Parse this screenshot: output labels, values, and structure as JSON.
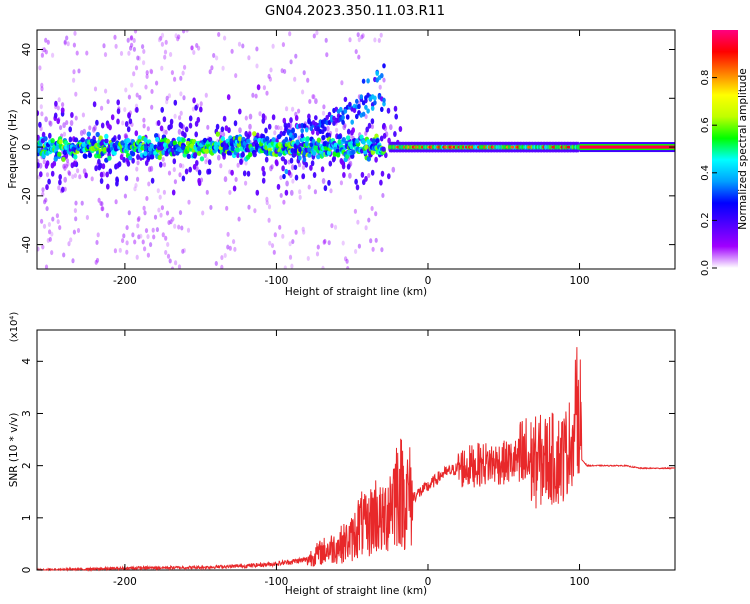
{
  "figure": {
    "title": "GN04.2023.350.11.03.R11"
  },
  "chart_data": [
    {
      "type": "heatmap",
      "xlabel": "Height of straight line (km)",
      "ylabel": "Frequency (Hz)",
      "xlim": [
        -258,
        163
      ],
      "ylim": [
        -50,
        48
      ],
      "xticks": [
        -200,
        -100,
        0,
        100
      ],
      "yticks": [
        -40,
        -20,
        0,
        20,
        40
      ],
      "colorbar": {
        "label": "Normalized spectral amplitude",
        "range": [
          0,
          1
        ],
        "ticks": [
          0.0,
          0.2,
          0.4,
          0.6,
          0.8
        ],
        "colormap": [
          "#ffffff",
          "#a000ff",
          "#5000ff",
          "#0000ff",
          "#00a0ff",
          "#00ffff",
          "#00ff00",
          "#c0ff00",
          "#ffff00",
          "#ff8000",
          "#ff0000",
          "#ff0080"
        ]
      },
      "features": [
        {
          "name": "noise band",
          "x_range": [
            -258,
            -30
          ],
          "center_freq": 0,
          "amplitude": 0.45
        },
        {
          "name": "rising trace",
          "x_range": [
            -90,
            -30
          ],
          "center_freq": [
            5,
            30
          ],
          "amplitude": 0.3
        },
        {
          "name": "coherent signal",
          "x_range": [
            -10,
            100
          ],
          "center_freq": 0,
          "amplitude": 0.65
        },
        {
          "name": "strong tone",
          "x_range": [
            100,
            163
          ],
          "center_freq": 0,
          "amplitude": 0.95
        }
      ]
    },
    {
      "type": "line",
      "xlabel": "Height of straight line (km)",
      "ylabel": "SNR (10 * v/v)",
      "yscale_note": "(x10⁴)",
      "xlim": [
        -258,
        163
      ],
      "ylim": [
        0,
        4.6
      ],
      "xticks": [
        -200,
        -100,
        0,
        100
      ],
      "yticks": [
        0,
        1,
        2,
        3,
        4
      ],
      "color": "#e8282a",
      "series": [
        {
          "x": [
            -258,
            -220,
            -190,
            -150,
            -120,
            -100,
            -80,
            -70,
            -60,
            -50,
            -45,
            -40,
            -35,
            -30,
            -25,
            -20,
            -15,
            -10,
            0,
            10,
            20,
            30,
            40,
            50,
            60,
            65,
            70,
            75,
            80,
            85,
            90,
            95,
            100,
            102,
            105,
            110,
            130,
            140,
            150,
            163
          ],
          "y": [
            0.0,
            0.02,
            0.04,
            0.05,
            0.08,
            0.12,
            0.2,
            0.35,
            0.45,
            0.6,
            0.9,
            0.8,
            1.1,
            0.9,
            1.3,
            1.6,
            1.4,
            1.4,
            1.6,
            1.85,
            1.95,
            2.0,
            2.05,
            2.05,
            2.1,
            2.1,
            2.05,
            2.1,
            2.15,
            2.1,
            2.2,
            2.5,
            2.6,
            2.1,
            2.0,
            2.0,
            2.0,
            1.95,
            1.95,
            1.95
          ]
        }
      ]
    }
  ]
}
